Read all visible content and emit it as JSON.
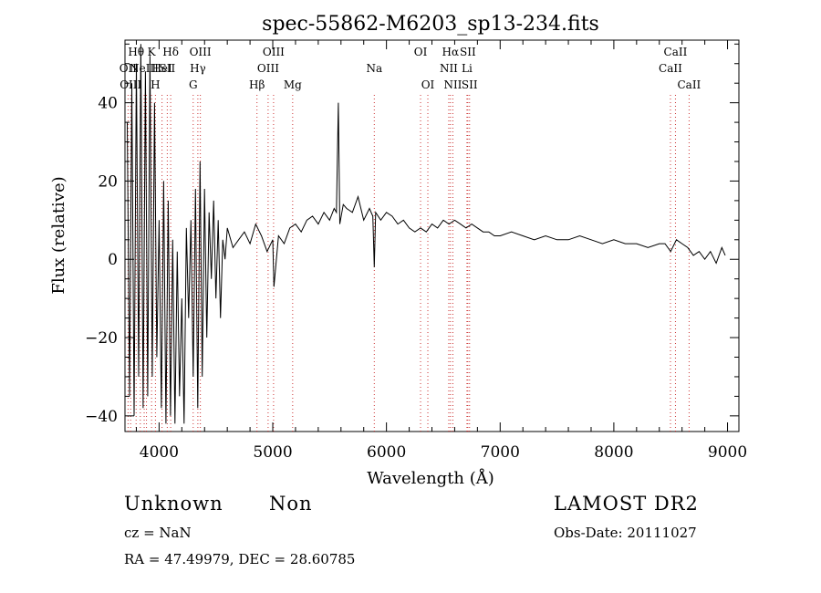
{
  "chart_data": {
    "type": "line",
    "title": "spec-55862-M6203_sp13-234.fits",
    "xlabel": "Wavelength (Å)",
    "ylabel": "Flux (relative)",
    "xlim": [
      3700,
      9100
    ],
    "ylim": [
      -44,
      56
    ],
    "xticks": [
      4000,
      5000,
      6000,
      7000,
      8000,
      9000
    ],
    "yticks": [
      -40,
      -20,
      0,
      20,
      40
    ],
    "grid": false,
    "line_color": "#000000",
    "marker_color": "#cc3333",
    "series": [
      {
        "x": [
          3720,
          3740,
          3760,
          3780,
          3800,
          3820,
          3840,
          3860,
          3880,
          3900,
          3920,
          3940,
          3960,
          3980,
          4000,
          4020,
          4040,
          4060,
          4080,
          4100,
          4120,
          4140,
          4160,
          4180,
          4200,
          4220,
          4240,
          4260,
          4280,
          4300,
          4320,
          4340,
          4360,
          4380,
          4400,
          4420,
          4440,
          4460,
          4480,
          4500,
          4520,
          4540,
          4560,
          4580,
          4600,
          4650,
          4700,
          4750,
          4800,
          4850,
          4900,
          4950,
          5000,
          5010,
          5050,
          5100,
          5150,
          5200,
          5250,
          5300,
          5350,
          5400,
          5450,
          5500,
          5540,
          5560,
          5577,
          5590,
          5620,
          5650,
          5700,
          5750,
          5800,
          5850,
          5880,
          5893,
          5905,
          5950,
          6000,
          6050,
          6100,
          6150,
          6200,
          6250,
          6300,
          6350,
          6400,
          6450,
          6500,
          6550,
          6600,
          6650,
          6700,
          6750,
          6800,
          6850,
          6900,
          6950,
          7000,
          7100,
          7200,
          7300,
          7400,
          7500,
          7600,
          7700,
          7800,
          7900,
          8000,
          8100,
          8200,
          8300,
          8400,
          8450,
          8500,
          8550,
          8600,
          8650,
          8700,
          8750,
          8800,
          8850,
          8900,
          8950,
          8980
        ],
        "values": [
          35,
          -35,
          45,
          -40,
          50,
          -30,
          55,
          -38,
          48,
          -35,
          52,
          -30,
          40,
          -25,
          10,
          -38,
          20,
          -42,
          15,
          -40,
          5,
          -42,
          2,
          -35,
          -10,
          -42,
          8,
          -15,
          10,
          -30,
          18,
          -38,
          25,
          -30,
          18,
          -20,
          12,
          -5,
          15,
          -10,
          10,
          -15,
          5,
          0,
          8,
          3,
          5,
          7,
          4,
          9,
          6,
          2,
          5,
          -7,
          6,
          4,
          8,
          9,
          7,
          10,
          11,
          9,
          12,
          10,
          13,
          12,
          40,
          9,
          14,
          13,
          12,
          16,
          10,
          13,
          11,
          -2,
          12,
          10,
          12,
          11,
          9,
          10,
          8,
          7,
          8,
          7,
          9,
          8,
          10,
          9,
          10,
          9,
          8,
          9,
          8,
          7,
          7,
          6,
          6,
          7,
          6,
          5,
          6,
          5,
          5,
          6,
          5,
          4,
          5,
          4,
          4,
          3,
          4,
          4,
          2,
          5,
          4,
          3,
          1,
          2,
          0,
          2,
          -1,
          3,
          1
        ]
      }
    ],
    "lines": [
      {
        "wavelength": 3727,
        "label": "OII",
        "row": 1
      },
      {
        "wavelength": 3750,
        "label": "OIII",
        "row": 2
      },
      {
        "wavelength": 3798,
        "label": "Hθ",
        "row": 0
      },
      {
        "wavelength": 3835,
        "label": "",
        "row": 0
      },
      {
        "wavelength": 3869,
        "label": "NeIII",
        "row": 1
      },
      {
        "wavelength": 3889,
        "label": "",
        "row": 0
      },
      {
        "wavelength": 3934,
        "label": "K",
        "row": 0
      },
      {
        "wavelength": 3968,
        "label": "H",
        "row": 2
      },
      {
        "wavelength": 4026,
        "label": "HeI",
        "row": 1
      },
      {
        "wavelength": 4072,
        "label": "SII",
        "row": 1
      },
      {
        "wavelength": 4102,
        "label": "Hδ",
        "row": 0
      },
      {
        "wavelength": 4300,
        "label": "G",
        "row": 2
      },
      {
        "wavelength": 4341,
        "label": "Hγ",
        "row": 1
      },
      {
        "wavelength": 4363,
        "label": "OIII",
        "row": 0
      },
      {
        "wavelength": 4861,
        "label": "Hβ",
        "row": 2
      },
      {
        "wavelength": 4959,
        "label": "OIII",
        "row": 1
      },
      {
        "wavelength": 5007,
        "label": "OIII",
        "row": 0
      },
      {
        "wavelength": 5175,
        "label": "Mg",
        "row": 2
      },
      {
        "wavelength": 5893,
        "label": "Na",
        "row": 1
      },
      {
        "wavelength": 6300,
        "label": "OI",
        "row": 0
      },
      {
        "wavelength": 6364,
        "label": "OI",
        "row": 2
      },
      {
        "wavelength": 6548,
        "label": "NII",
        "row": 1
      },
      {
        "wavelength": 6563,
        "label": "Hα",
        "row": 0
      },
      {
        "wavelength": 6584,
        "label": "NII",
        "row": 2
      },
      {
        "wavelength": 6708,
        "label": "Li",
        "row": 1
      },
      {
        "wavelength": 6716,
        "label": "SII",
        "row": 0
      },
      {
        "wavelength": 6731,
        "label": "SII",
        "row": 2
      },
      {
        "wavelength": 8498,
        "label": "CaII",
        "row": 1
      },
      {
        "wavelength": 8542,
        "label": "CaII",
        "row": 0
      },
      {
        "wavelength": 8662,
        "label": "CaII",
        "row": 2
      }
    ]
  },
  "info": {
    "class_label": "Unknown",
    "subclass_label": "Non",
    "survey": "LAMOST DR2",
    "redshift": "cz = NaN",
    "obs_date": "Obs-Date: 20111027",
    "coords": "RA =   47.49979, DEC =   28.60785"
  }
}
